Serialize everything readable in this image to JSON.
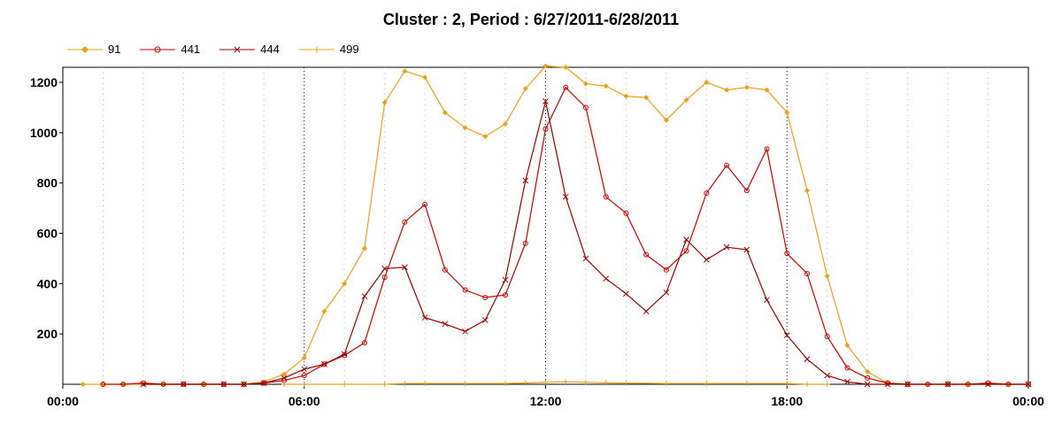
{
  "chart_data": {
    "type": "line",
    "title": "Cluster : 2, Period : 6/27/2011-6/28/2011",
    "xlabel": "",
    "ylabel": "",
    "x_tick_labels": [
      "00:00",
      "06:00",
      "12:00",
      "18:00",
      "00:00"
    ],
    "x_ticks_hours": [
      0,
      6,
      12,
      18,
      24
    ],
    "y_ticks": [
      200,
      400,
      600,
      800,
      1000,
      1200
    ],
    "xlim_hours": [
      0,
      24
    ],
    "ylim": [
      0,
      1260
    ],
    "legend_position": "top-left",
    "grid": "vertical dotted lines every hour; major dotted lines every 6 hours",
    "series": [
      {
        "name": "91",
        "color": "#E8A317",
        "marker": "diamond",
        "points": [
          [
            0.5,
            0
          ],
          [
            1,
            0
          ],
          [
            1.5,
            0
          ],
          [
            2,
            0
          ],
          [
            2.5,
            0
          ],
          [
            3,
            0
          ],
          [
            3.5,
            0
          ],
          [
            4,
            0
          ],
          [
            4.5,
            0
          ],
          [
            5,
            10
          ],
          [
            5.5,
            40
          ],
          [
            6,
            105
          ],
          [
            6.5,
            290
          ],
          [
            7,
            400
          ],
          [
            7.5,
            540
          ],
          [
            8,
            1120
          ],
          [
            8.5,
            1245
          ],
          [
            9,
            1220
          ],
          [
            9.5,
            1080
          ],
          [
            10,
            1020
          ],
          [
            10.5,
            985
          ],
          [
            11,
            1035
          ],
          [
            11.5,
            1175
          ],
          [
            12,
            1265
          ],
          [
            12.5,
            1260
          ],
          [
            13,
            1195
          ],
          [
            13.5,
            1185
          ],
          [
            14,
            1145
          ],
          [
            14.5,
            1140
          ],
          [
            15,
            1050
          ],
          [
            15.5,
            1130
          ],
          [
            16,
            1200
          ],
          [
            16.5,
            1170
          ],
          [
            17,
            1180
          ],
          [
            17.5,
            1170
          ],
          [
            18,
            1080
          ],
          [
            18.5,
            770
          ],
          [
            19,
            430
          ],
          [
            19.5,
            155
          ],
          [
            20,
            50
          ],
          [
            20.5,
            5
          ],
          [
            21,
            0
          ],
          [
            21.5,
            0
          ],
          [
            22,
            0
          ],
          [
            22.5,
            0
          ],
          [
            23,
            0
          ],
          [
            23.5,
            0
          ],
          [
            24,
            0
          ]
        ]
      },
      {
        "name": "441",
        "color": "#CC0000",
        "marker": "circle",
        "points": [
          [
            1,
            0
          ],
          [
            1.5,
            0
          ],
          [
            2,
            5
          ],
          [
            2.5,
            0
          ],
          [
            3,
            0
          ],
          [
            3.5,
            0
          ],
          [
            4,
            0
          ],
          [
            4.5,
            0
          ],
          [
            5,
            5
          ],
          [
            5.5,
            15
          ],
          [
            6,
            35
          ],
          [
            6.5,
            80
          ],
          [
            7,
            115
          ],
          [
            7.5,
            165
          ],
          [
            8,
            425
          ],
          [
            8.5,
            645
          ],
          [
            9,
            715
          ],
          [
            9.5,
            455
          ],
          [
            10,
            375
          ],
          [
            10.5,
            345
          ],
          [
            11,
            355
          ],
          [
            11.5,
            560
          ],
          [
            12,
            1015
          ],
          [
            12.5,
            1180
          ],
          [
            13,
            1100
          ],
          [
            13.5,
            745
          ],
          [
            14,
            680
          ],
          [
            14.5,
            515
          ],
          [
            15,
            455
          ],
          [
            15.5,
            530
          ],
          [
            16,
            760
          ],
          [
            16.5,
            870
          ],
          [
            17,
            770
          ],
          [
            17.5,
            935
          ],
          [
            18,
            520
          ],
          [
            18.5,
            440
          ],
          [
            19,
            190
          ],
          [
            19.5,
            65
          ],
          [
            20,
            25
          ],
          [
            20.5,
            5
          ],
          [
            21,
            0
          ],
          [
            21.5,
            0
          ],
          [
            22,
            0
          ],
          [
            22.5,
            0
          ],
          [
            23,
            5
          ],
          [
            23.5,
            0
          ],
          [
            24,
            0
          ]
        ]
      },
      {
        "name": "444",
        "color": "#990000",
        "marker": "cross",
        "points": [
          [
            2,
            0
          ],
          [
            3,
            0
          ],
          [
            4,
            0
          ],
          [
            4.5,
            0
          ],
          [
            5,
            5
          ],
          [
            5.5,
            25
          ],
          [
            6,
            60
          ],
          [
            6.5,
            80
          ],
          [
            7,
            120
          ],
          [
            7.5,
            350
          ],
          [
            8,
            460
          ],
          [
            8.5,
            465
          ],
          [
            9,
            265
          ],
          [
            9.5,
            240
          ],
          [
            10,
            210
          ],
          [
            10.5,
            255
          ],
          [
            11,
            415
          ],
          [
            11.5,
            810
          ],
          [
            12,
            1125
          ],
          [
            12.5,
            745
          ],
          [
            13,
            500
          ],
          [
            13.5,
            420
          ],
          [
            14,
            360
          ],
          [
            14.5,
            290
          ],
          [
            15,
            365
          ],
          [
            15.5,
            575
          ],
          [
            16,
            495
          ],
          [
            16.5,
            545
          ],
          [
            17,
            535
          ],
          [
            17.5,
            335
          ],
          [
            18,
            195
          ],
          [
            18.5,
            100
          ],
          [
            19,
            35
          ],
          [
            19.5,
            10
          ],
          [
            20,
            0
          ],
          [
            20.5,
            0
          ],
          [
            21,
            0
          ],
          [
            22,
            0
          ],
          [
            23,
            0
          ],
          [
            24,
            0
          ]
        ]
      },
      {
        "name": "499",
        "color": "#E8A317",
        "marker": "plus",
        "points": [
          [
            5.5,
            0
          ],
          [
            6,
            0
          ],
          [
            7,
            0
          ],
          [
            8,
            0
          ],
          [
            8.5,
            3
          ],
          [
            9,
            3
          ],
          [
            10,
            3
          ],
          [
            11,
            3
          ],
          [
            11.5,
            5
          ],
          [
            12,
            8
          ],
          [
            12.5,
            10
          ],
          [
            13,
            8
          ],
          [
            13.5,
            6
          ],
          [
            14,
            5
          ],
          [
            15,
            3
          ],
          [
            16,
            3
          ],
          [
            17,
            3
          ],
          [
            18,
            3
          ],
          [
            18.5,
            0
          ],
          [
            19,
            0
          ]
        ]
      }
    ]
  }
}
